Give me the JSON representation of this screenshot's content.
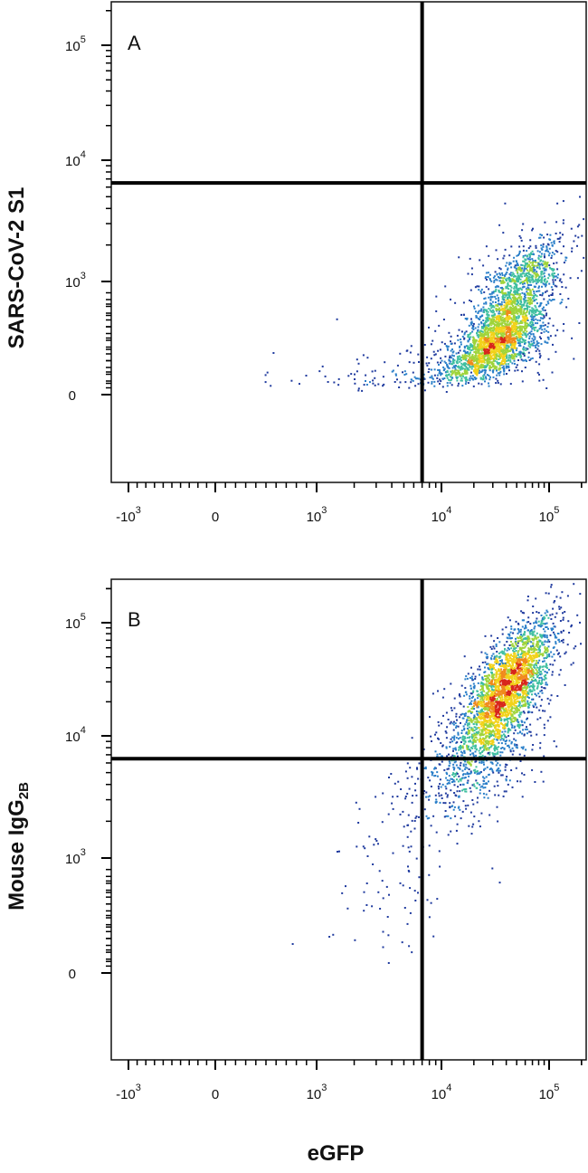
{
  "chart_data": [
    {
      "type": "scatter",
      "panel_label": "A",
      "xlabel": "",
      "ylabel": "SARS-CoV-2 S1",
      "x_scale": "biexponential",
      "y_scale": "biexponential",
      "xlim": [
        -2000,
        250000
      ],
      "ylim": [
        -1500,
        250000
      ],
      "x_ticks": [
        {
          "value": -1000,
          "label": "-10",
          "exp": "3"
        },
        {
          "value": 0,
          "label": "0",
          "exp": ""
        },
        {
          "value": 1000,
          "label": "10",
          "exp": "3"
        },
        {
          "value": 10000,
          "label": "10",
          "exp": "4"
        },
        {
          "value": 100000,
          "label": "10",
          "exp": "5"
        }
      ],
      "y_ticks": [
        {
          "value": 0,
          "label": "0",
          "exp": ""
        },
        {
          "value": 1000,
          "label": "10",
          "exp": "3"
        },
        {
          "value": 10000,
          "label": "10",
          "exp": "4"
        },
        {
          "value": 100000,
          "label": "10",
          "exp": "5"
        }
      ],
      "gates": {
        "x": 7000,
        "y": 6500
      },
      "populations": [
        {
          "count": 2600,
          "x_center": 38000,
          "x_log_sd": 0.22,
          "y_center": 600,
          "y_log_sd": 0.24,
          "correlation": 0.72
        },
        {
          "count": 600,
          "x_center": 30000,
          "x_log_sd": 0.35,
          "y_center": 420,
          "y_log_sd": 0.3,
          "correlation": 0.5
        },
        {
          "count": 90,
          "x_center": 4000,
          "x_log_sd": 0.4,
          "y_center": 150,
          "y_log_sd": 0.25,
          "correlation": 0.1
        }
      ]
    },
    {
      "type": "scatter",
      "panel_label": "B",
      "xlabel": "eGFP",
      "ylabel": "Mouse IgG",
      "ylabel_subscript": "2B",
      "x_scale": "biexponential",
      "y_scale": "biexponential",
      "xlim": [
        -2000,
        250000
      ],
      "ylim": [
        -1500,
        250000
      ],
      "x_ticks": [
        {
          "value": -1000,
          "label": "-10",
          "exp": "3"
        },
        {
          "value": 0,
          "label": "0",
          "exp": ""
        },
        {
          "value": 1000,
          "label": "10",
          "exp": "3"
        },
        {
          "value": 10000,
          "label": "10",
          "exp": "4"
        },
        {
          "value": 100000,
          "label": "10",
          "exp": "5"
        }
      ],
      "y_ticks": [
        {
          "value": 0,
          "label": "0",
          "exp": ""
        },
        {
          "value": 1000,
          "label": "10",
          "exp": "3"
        },
        {
          "value": 10000,
          "label": "10",
          "exp": "4"
        },
        {
          "value": 100000,
          "label": "10",
          "exp": "5"
        }
      ],
      "gates": {
        "x": 7000,
        "y": 6500
      },
      "populations": [
        {
          "count": 2600,
          "x_center": 40000,
          "x_log_sd": 0.22,
          "y_center": 28000,
          "y_log_sd": 0.3,
          "correlation": 0.7
        },
        {
          "count": 700,
          "x_center": 20000,
          "x_log_sd": 0.3,
          "y_center": 7000,
          "y_log_sd": 0.3,
          "correlation": 0.55
        },
        {
          "count": 110,
          "x_center": 5000,
          "x_log_sd": 0.35,
          "y_center": 1200,
          "y_log_sd": 0.45,
          "correlation": 0.4
        }
      ]
    }
  ],
  "colors": {
    "axis": "#000000",
    "density": [
      "#1f3a9e",
      "#2a7fc9",
      "#3fbfa0",
      "#9fd43a",
      "#f2d21a",
      "#f08a1c",
      "#d8261c"
    ]
  }
}
